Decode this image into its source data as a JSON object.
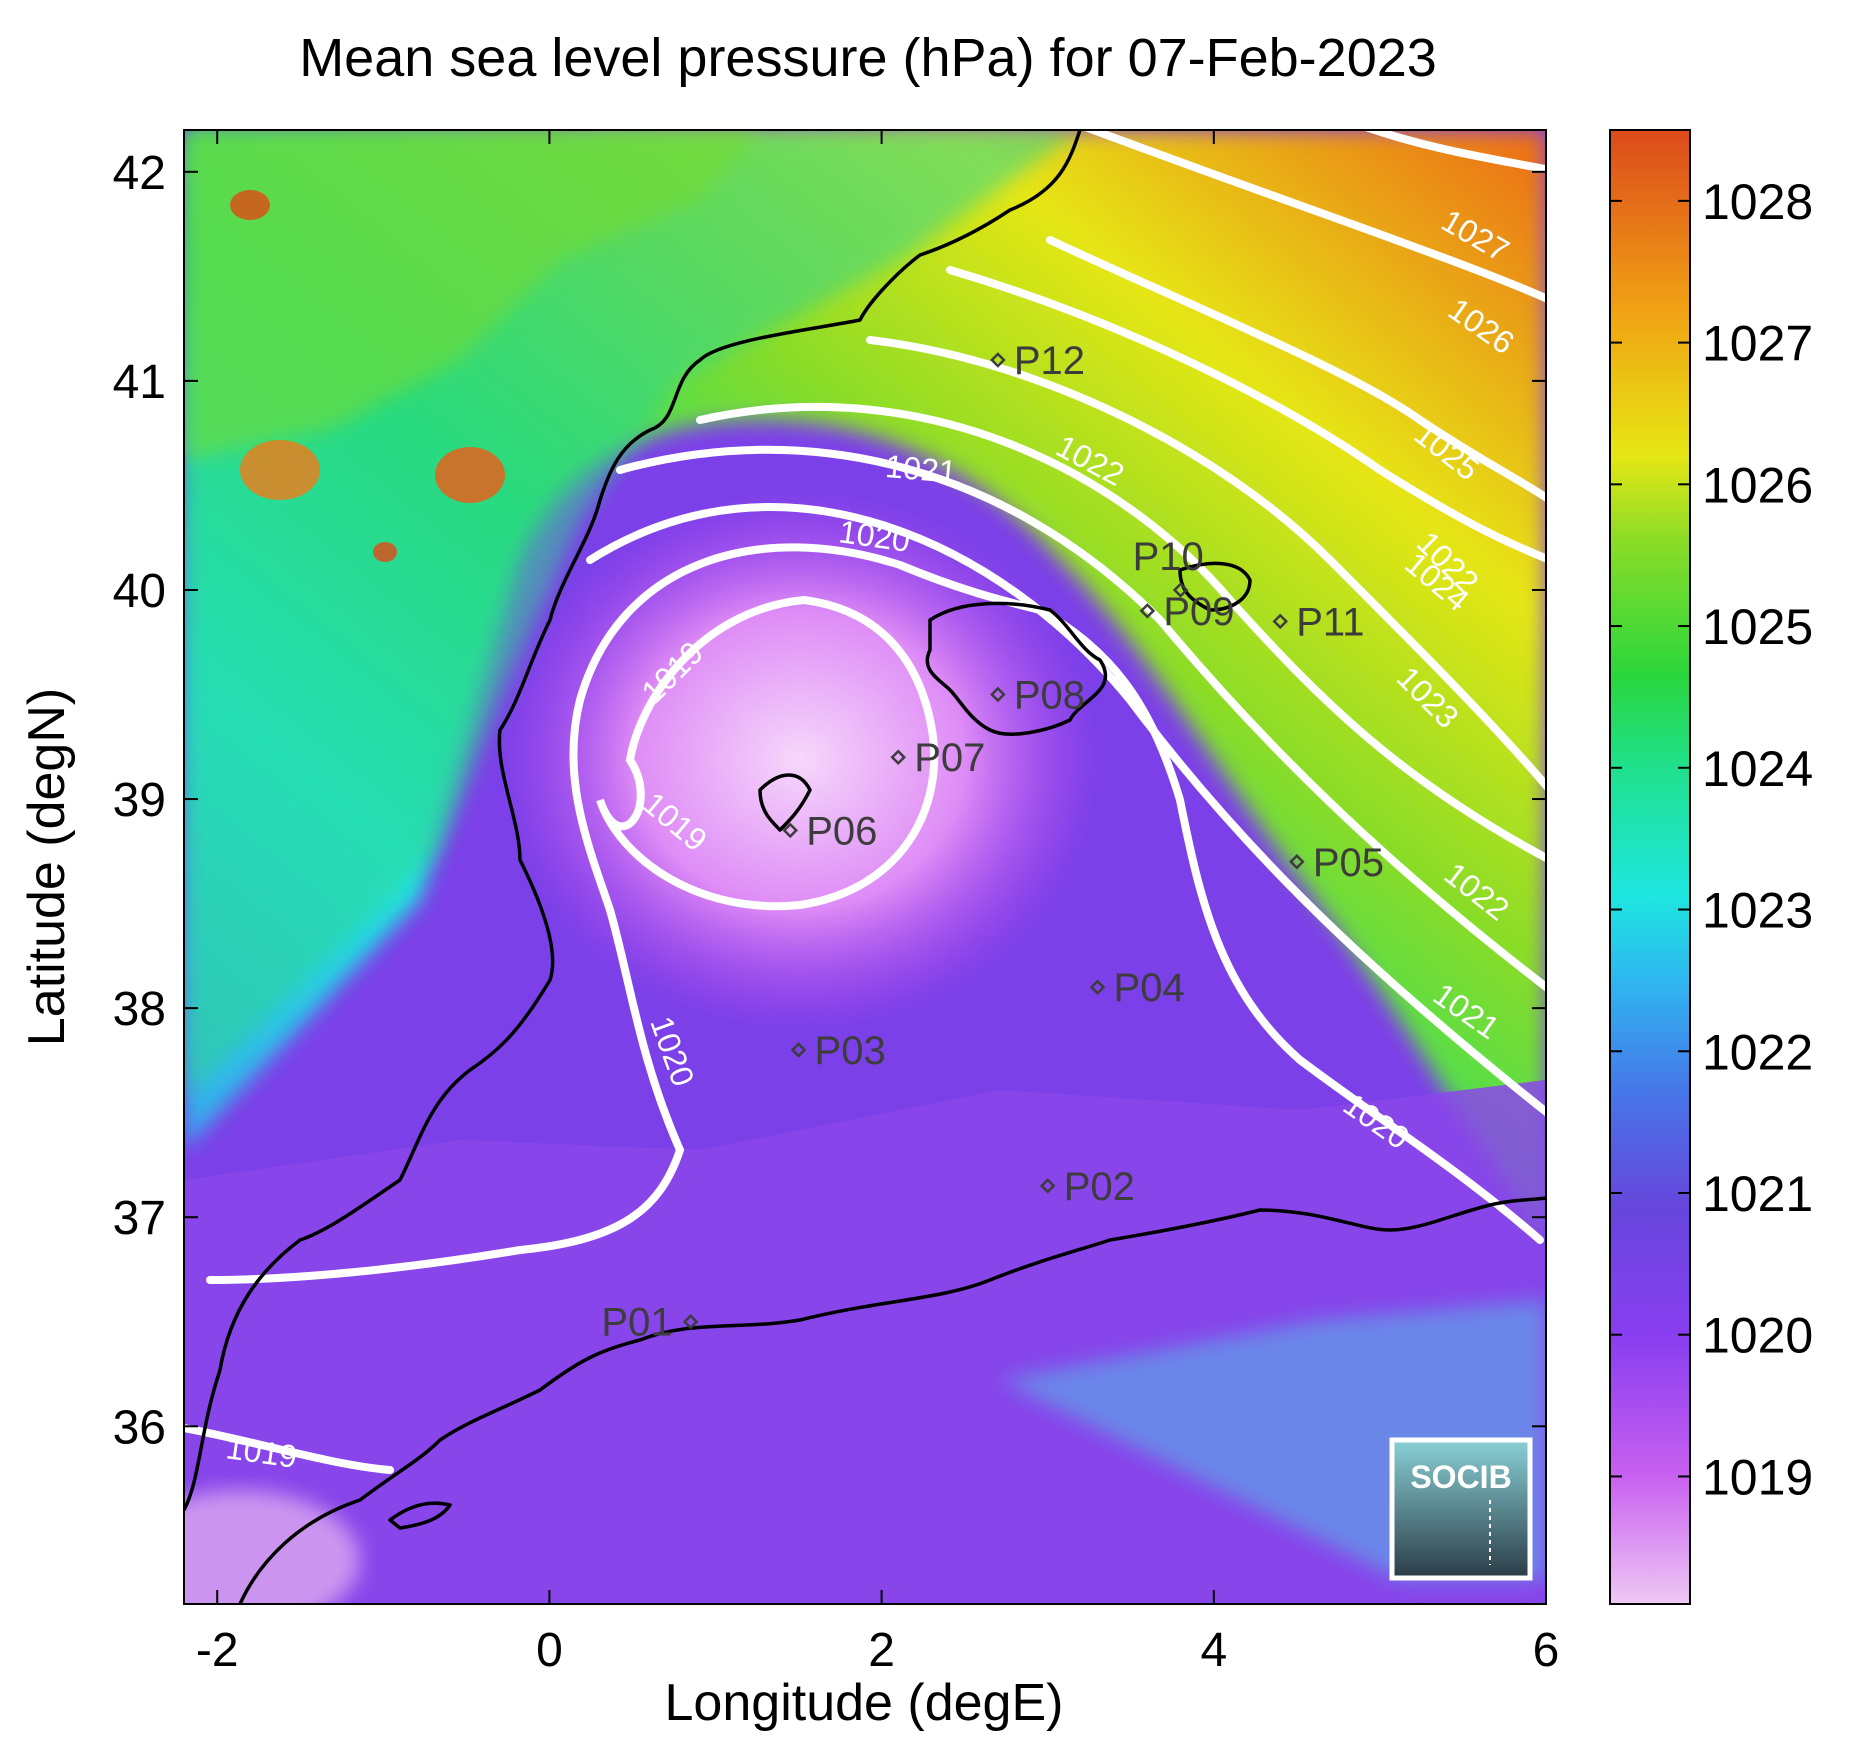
{
  "title": "Mean sea level pressure (hPa) for 07-Feb-2023",
  "xlabel": "Longitude (degE)",
  "ylabel": "Latitude (degN)",
  "map": {
    "lon_range": [
      -2.2,
      6
    ],
    "lat_range": [
      35.15,
      42.2
    ],
    "x_ticks": [
      -2,
      0,
      2,
      4,
      6
    ],
    "x_tick_labels": [
      "-2",
      "0",
      "2",
      "4",
      "6"
    ],
    "y_ticks": [
      36,
      37,
      38,
      39,
      40,
      41,
      42
    ],
    "y_tick_labels": [
      "36",
      "37",
      "38",
      "39",
      "40",
      "41",
      "42"
    ]
  },
  "colorbar": {
    "range": [
      1018.1,
      1028.5
    ],
    "ticks": [
      1019,
      1020,
      1021,
      1022,
      1023,
      1024,
      1025,
      1026,
      1027,
      1028
    ],
    "tick_labels": [
      "1019",
      "1020",
      "1021",
      "1022",
      "1023",
      "1024",
      "1025",
      "1026",
      "1027",
      "1028"
    ],
    "colors": [
      "#eec8f4",
      "#b43cf0",
      "#6a46e0",
      "#3c9ef0",
      "#1ee6e0",
      "#22e06a",
      "#7adc2a",
      "#e6e614",
      "#f0a014",
      "#e04a14"
    ]
  },
  "contour_labels": [
    "1019",
    "1019",
    "1019",
    "1020",
    "1020",
    "1020",
    "1021",
    "1021",
    "1022",
    "1022",
    "1022",
    "1023",
    "1024",
    "1025",
    "1026",
    "1027"
  ],
  "stations": [
    {
      "id": "P01",
      "lon": 0.85,
      "lat": 36.5
    },
    {
      "id": "P02",
      "lon": 3.0,
      "lat": 37.15
    },
    {
      "id": "P03",
      "lon": 1.5,
      "lat": 37.8
    },
    {
      "id": "P04",
      "lon": 3.3,
      "lat": 38.1
    },
    {
      "id": "P05",
      "lon": 4.5,
      "lat": 38.7
    },
    {
      "id": "P06",
      "lon": 1.45,
      "lat": 38.85
    },
    {
      "id": "P07",
      "lon": 2.1,
      "lat": 39.2
    },
    {
      "id": "P08",
      "lon": 2.7,
      "lat": 39.5
    },
    {
      "id": "P09",
      "lon": 3.6,
      "lat": 39.9
    },
    {
      "id": "P10",
      "lon": 3.8,
      "lat": 40.0
    },
    {
      "id": "P11",
      "lon": 4.4,
      "lat": 39.85
    },
    {
      "id": "P12",
      "lon": 2.7,
      "lat": 41.1
    }
  ],
  "logo_text": "SOCIB"
}
